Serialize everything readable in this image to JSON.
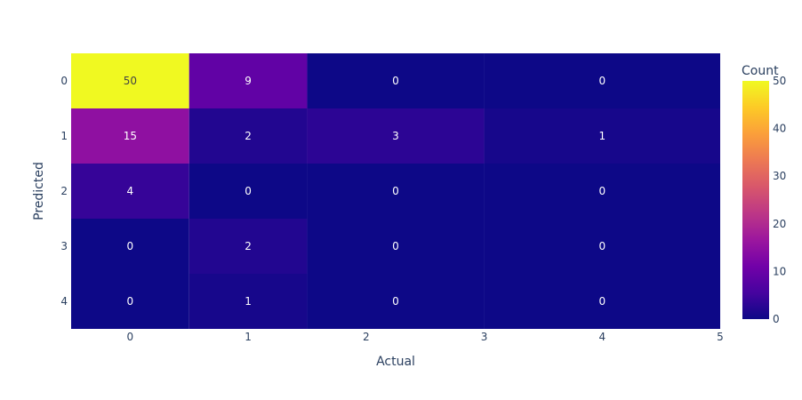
{
  "chart_data": {
    "type": "heatmap",
    "title": "",
    "xlabel": "Actual",
    "ylabel": "Predicted",
    "x_edges": [
      -0.5,
      0.5,
      1.5,
      3,
      5
    ],
    "x_ticks": [
      "0",
      "1",
      "2",
      "3",
      "4",
      "5"
    ],
    "y_categories": [
      "0",
      "1",
      "2",
      "3",
      "4"
    ],
    "cells": [
      [
        50,
        9,
        0,
        0
      ],
      [
        15,
        2,
        3,
        1
      ],
      [
        4,
        0,
        0,
        0
      ],
      [
        0,
        2,
        0,
        0
      ],
      [
        0,
        1,
        0,
        0
      ]
    ],
    "colorbar": {
      "title": "Count",
      "min": 0,
      "max": 50,
      "ticks": [
        "0",
        "10",
        "20",
        "30",
        "40",
        "50"
      ]
    },
    "colorscale": [
      "#0d0887",
      "#46039f",
      "#7201a8",
      "#9c179e",
      "#bd3786",
      "#d8576b",
      "#ed7953",
      "#fb9f3a",
      "#fdca26",
      "#f0f921"
    ]
  }
}
